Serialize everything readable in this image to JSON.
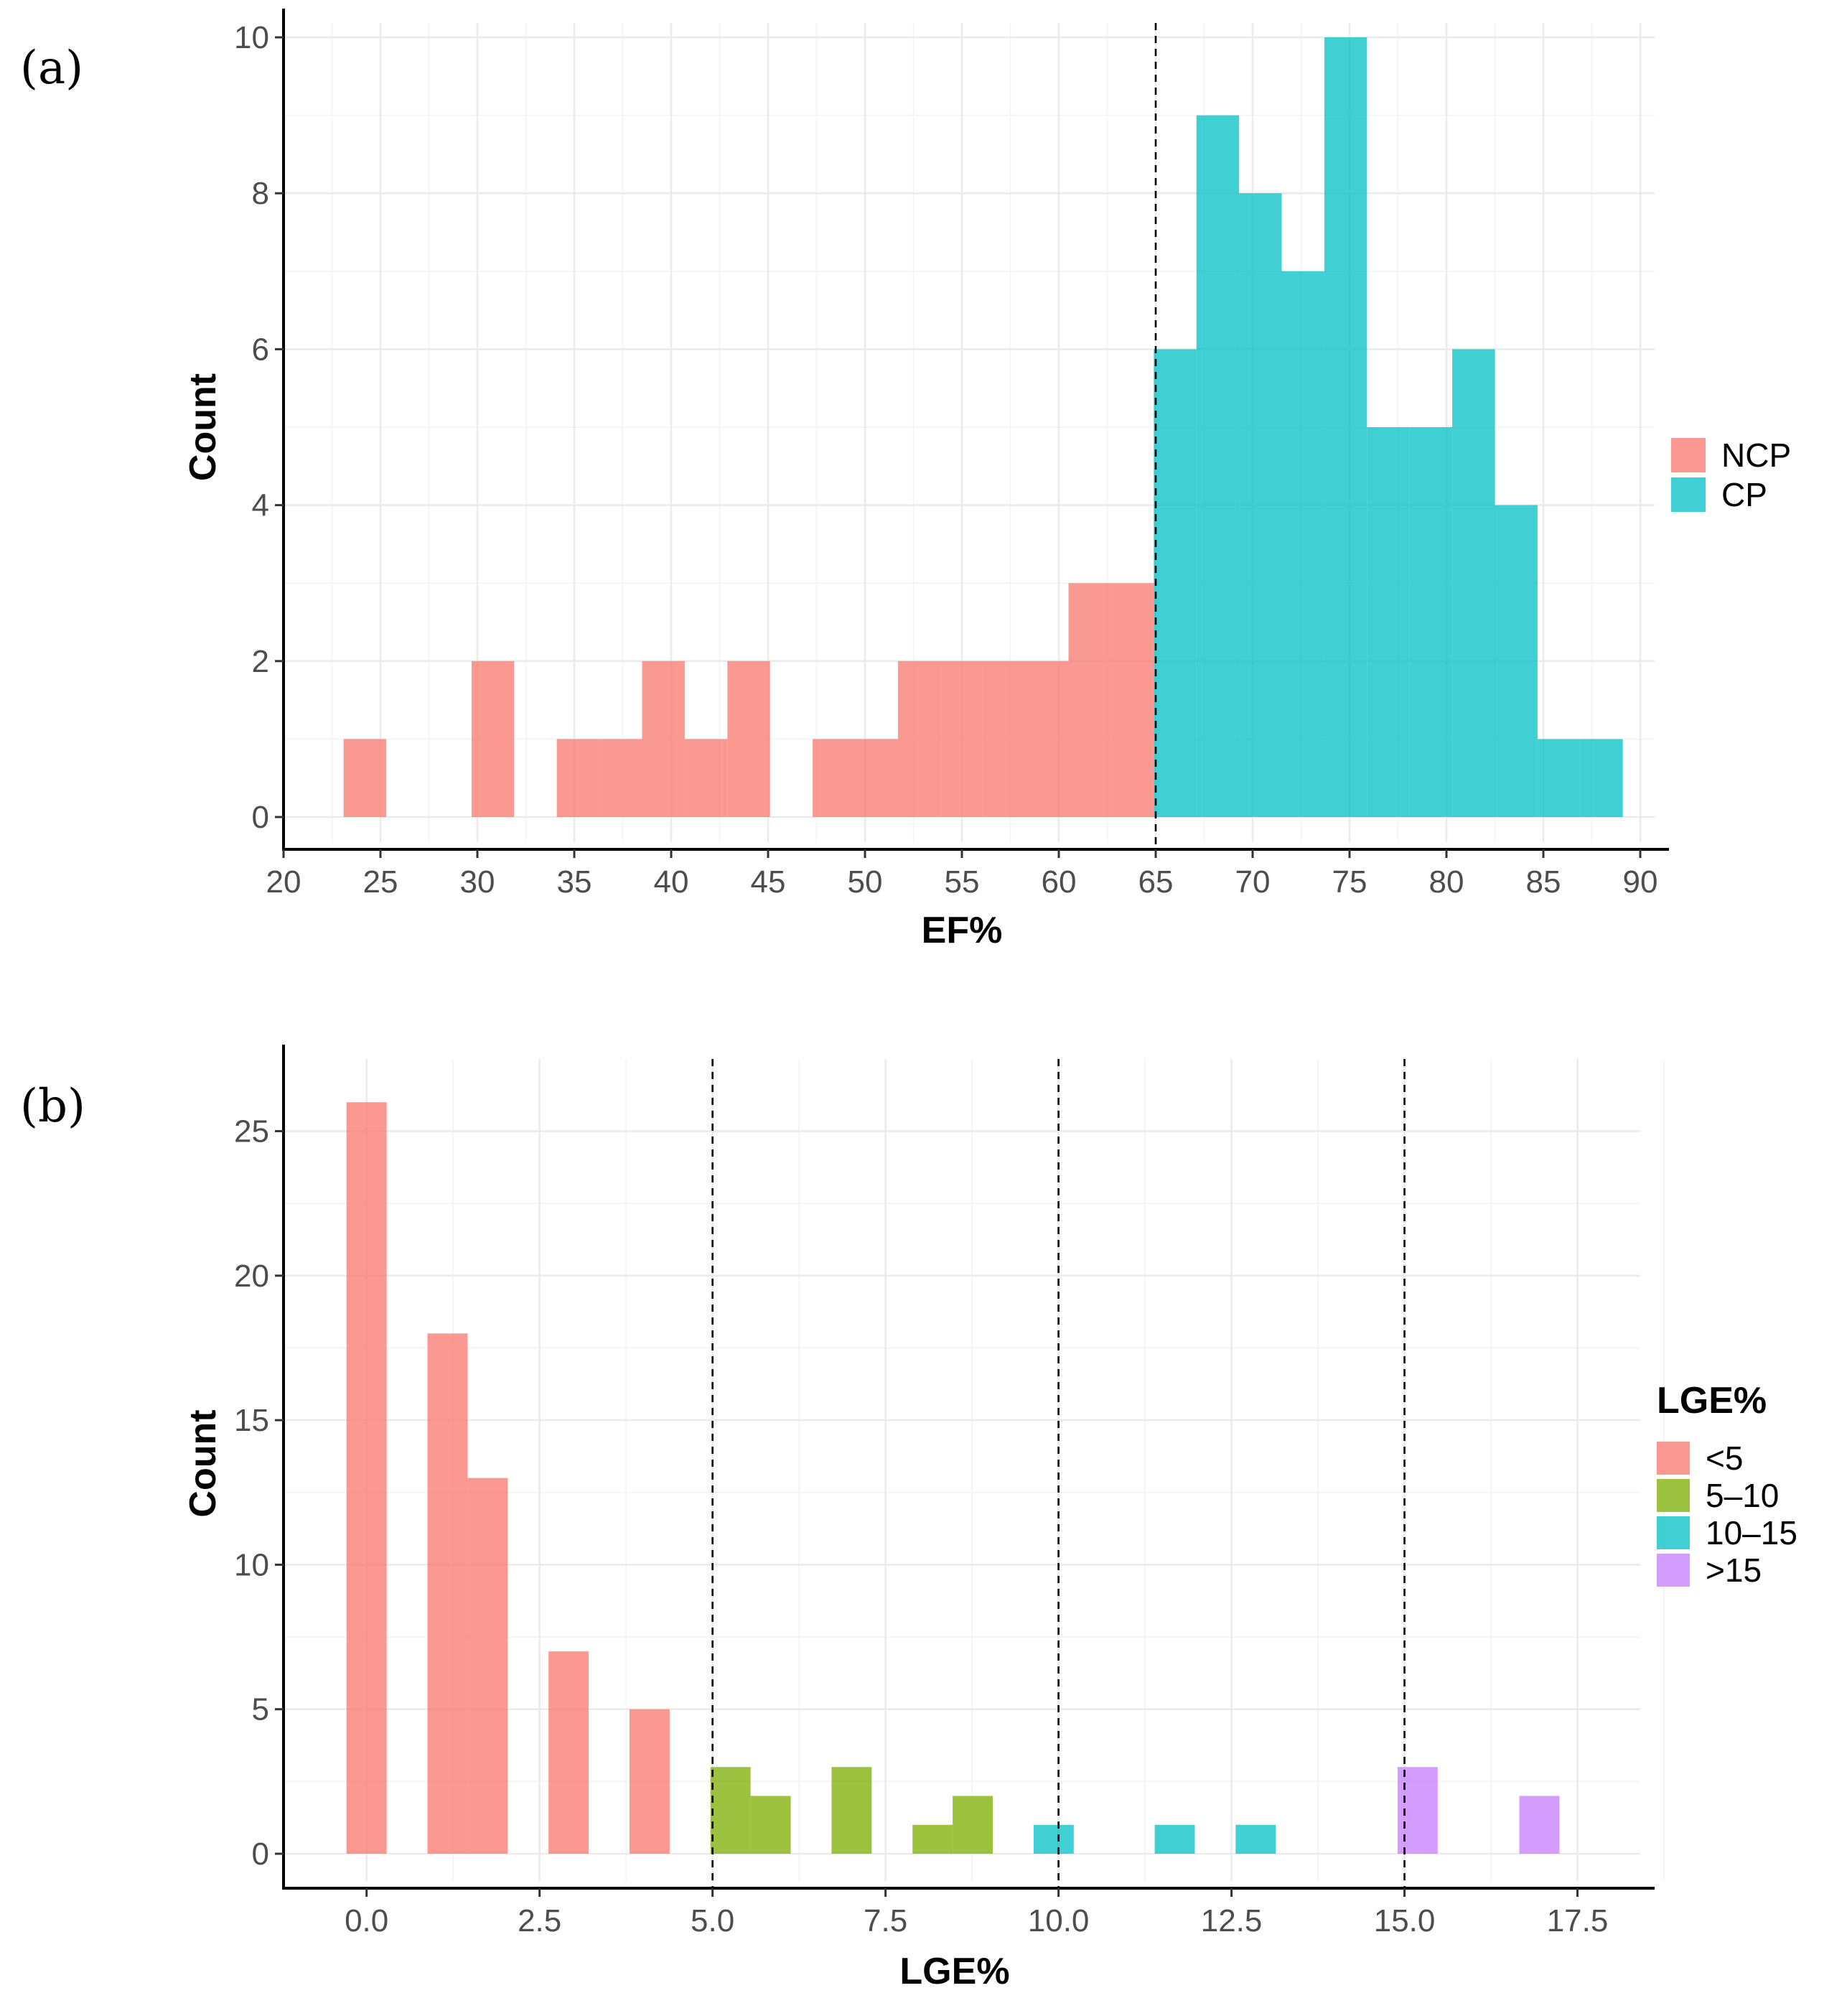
{
  "chart_data": [
    {
      "panel": "(a)",
      "type": "bar",
      "subtype": "histogram",
      "xlabel": "EF%",
      "ylabel": "Count",
      "xlim": [
        20,
        90
      ],
      "ylim": [
        0,
        10
      ],
      "xticks": [
        20,
        25,
        30,
        35,
        40,
        45,
        50,
        55,
        60,
        65,
        70,
        75,
        80,
        85,
        90
      ],
      "yticks": [
        0,
        2,
        4,
        6,
        8,
        10
      ],
      "grid": true,
      "legend_title": "",
      "legend_position": "right",
      "reference_lines": [
        65
      ],
      "series": [
        {
          "name": "NCP",
          "color": "#F8766D",
          "bins": [
            {
              "x0": 23.1,
              "x1": 25.3,
              "count": 1
            },
            {
              "x0": 29.7,
              "x1": 31.9,
              "count": 2
            },
            {
              "x0": 34.1,
              "x1": 36.3,
              "count": 1
            },
            {
              "x0": 36.3,
              "x1": 38.5,
              "count": 1
            },
            {
              "x0": 38.5,
              "x1": 40.7,
              "count": 2
            },
            {
              "x0": 40.7,
              "x1": 42.9,
              "count": 1
            },
            {
              "x0": 42.9,
              "x1": 45.1,
              "count": 2
            },
            {
              "x0": 47.3,
              "x1": 49.5,
              "count": 1
            },
            {
              "x0": 49.5,
              "x1": 51.7,
              "count": 1
            },
            {
              "x0": 51.7,
              "x1": 53.9,
              "count": 2
            },
            {
              "x0": 53.9,
              "x1": 56.1,
              "count": 2
            },
            {
              "x0": 56.1,
              "x1": 58.3,
              "count": 2
            },
            {
              "x0": 58.3,
              "x1": 60.5,
              "count": 2
            },
            {
              "x0": 60.5,
              "x1": 62.7,
              "count": 3
            },
            {
              "x0": 62.7,
              "x1": 64.9,
              "count": 3
            }
          ]
        },
        {
          "name": "CP",
          "color": "#00BFC4",
          "bins": [
            {
              "x0": 64.9,
              "x1": 67.1,
              "count": 6
            },
            {
              "x0": 67.1,
              "x1": 69.3,
              "count": 9
            },
            {
              "x0": 69.3,
              "x1": 71.5,
              "count": 8
            },
            {
              "x0": 71.5,
              "x1": 73.7,
              "count": 7
            },
            {
              "x0": 73.7,
              "x1": 75.9,
              "count": 10
            },
            {
              "x0": 75.9,
              "x1": 78.1,
              "count": 5
            },
            {
              "x0": 78.1,
              "x1": 80.3,
              "count": 5
            },
            {
              "x0": 80.3,
              "x1": 82.5,
              "count": 6
            },
            {
              "x0": 82.5,
              "x1": 84.7,
              "count": 4
            },
            {
              "x0": 84.7,
              "x1": 86.9,
              "count": 1
            },
            {
              "x0": 86.9,
              "x1": 89.1,
              "count": 1
            }
          ]
        }
      ]
    },
    {
      "panel": "(b)",
      "type": "bar",
      "subtype": "histogram",
      "xlabel": "LGE%",
      "ylabel": "Count",
      "xlim": [
        -1.2,
        18.2
      ],
      "ylim": [
        0,
        27
      ],
      "xticks": [
        "0.0",
        "2.5",
        "5.0",
        "7.5",
        "10.0",
        "12.5",
        "15.0",
        "17.5"
      ],
      "yticks": [
        0,
        5,
        10,
        15,
        20,
        25
      ],
      "grid": true,
      "legend_title": "LGE%",
      "legend_position": "right",
      "reference_lines": [
        5,
        10,
        15
      ],
      "series": [
        {
          "name": "<5",
          "color": "#F8766D",
          "bins": [
            {
              "x0": -0.29,
              "x1": 0.29,
              "count": 26
            },
            {
              "x0": 0.88,
              "x1": 1.46,
              "count": 18
            },
            {
              "x0": 1.46,
              "x1": 2.04,
              "count": 13
            },
            {
              "x0": 2.63,
              "x1": 3.21,
              "count": 7
            },
            {
              "x0": 3.8,
              "x1": 4.38,
              "count": 5
            }
          ]
        },
        {
          "name": "5–10",
          "color": "#7CAE00",
          "bins": [
            {
              "x0": 4.97,
              "x1": 5.55,
              "count": 3
            },
            {
              "x0": 5.55,
              "x1": 6.13,
              "count": 2
            },
            {
              "x0": 6.72,
              "x1": 7.3,
              "count": 3
            },
            {
              "x0": 7.89,
              "x1": 8.47,
              "count": 1
            },
            {
              "x0": 8.47,
              "x1": 9.05,
              "count": 2
            }
          ]
        },
        {
          "name": "10–15",
          "color": "#00BFC4",
          "bins": [
            {
              "x0": 9.64,
              "x1": 10.22,
              "count": 1
            },
            {
              "x0": 11.39,
              "x1": 11.97,
              "count": 1
            },
            {
              "x0": 12.56,
              "x1": 13.14,
              "count": 1
            }
          ]
        },
        {
          "name": ">15",
          "color": "#C77CFF",
          "bins": [
            {
              "x0": 14.9,
              "x1": 15.48,
              "count": 3
            },
            {
              "x0": 16.66,
              "x1": 17.24,
              "count": 2
            }
          ]
        }
      ]
    }
  ]
}
